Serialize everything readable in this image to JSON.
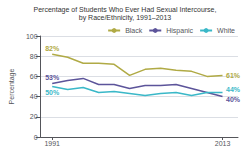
{
  "chart_data": {
    "type": "line",
    "title": "Percentage of Students Who Ever Had Sexual Intercourse,",
    "subtitle": "by Race/Ethnicity, 1991–2013",
    "ylabel": "Percentage",
    "x": [
      1991,
      1993,
      1995,
      1997,
      1999,
      2001,
      2003,
      2005,
      2007,
      2009,
      2011,
      2013
    ],
    "series": [
      {
        "name": "Black",
        "color": "#b0aa45",
        "values": [
          82,
          79,
          73,
          73,
          72,
          61,
          67,
          68,
          66,
          65,
          60,
          61
        ],
        "annotations": [
          {
            "text": "82%",
            "x": 1991,
            "y": 82
          },
          {
            "text": "61%",
            "x": 2013,
            "y": 61
          }
        ]
      },
      {
        "name": "Hispanic",
        "color": "#5c549a",
        "values": [
          53,
          56,
          58,
          52,
          52,
          48,
          51,
          51,
          52,
          48,
          44,
          40
        ],
        "annotations": [
          {
            "text": "53%",
            "x": 1991,
            "y": 53
          },
          {
            "text": "40%",
            "x": 2013,
            "y": 40
          }
        ]
      },
      {
        "name": "White",
        "color": "#3ab8c8",
        "values": [
          50,
          47,
          49,
          44,
          45,
          43,
          41,
          43,
          44,
          41,
          44,
          44
        ],
        "annotations": [
          {
            "text": "50%",
            "x": 1991,
            "y": 50
          },
          {
            "text": "44%",
            "x": 2013,
            "y": 44
          }
        ]
      }
    ],
    "xlim": [
      1989.5,
      2015
    ],
    "xticks": [
      1991,
      2013
    ],
    "ylim": [
      0,
      100
    ],
    "yticks": [
      0,
      20,
      40,
      60,
      80,
      100
    ],
    "grid": true,
    "legend": "upper right"
  }
}
